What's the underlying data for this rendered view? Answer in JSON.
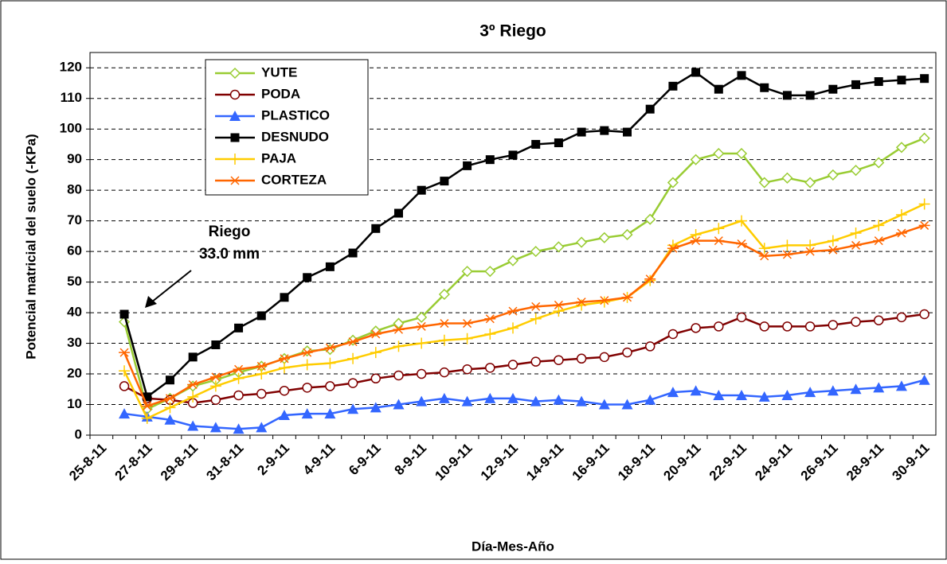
{
  "chart_data": {
    "type": "line",
    "title": "3º Riego",
    "x_label": "Día-Mes-Año",
    "y_label": "Potencial matricial del suelo (-KPa)",
    "annotation": [
      "Riego",
      "33.0 mm"
    ],
    "categories": [
      "25-8-11",
      null,
      "27-8-11",
      null,
      "29-8-11",
      null,
      "31-8-11",
      null,
      "2-9-11",
      null,
      "4-9-11",
      null,
      "6-9-11",
      null,
      "8-9-11",
      null,
      "10-9-11",
      null,
      "12-9-11",
      null,
      "14-9-11",
      null,
      "16-9-11",
      null,
      "18-9-11",
      null,
      "20-9-11",
      null,
      "22-9-11",
      null,
      "24-9-11",
      null,
      "26-9-11",
      null,
      "28-9-11",
      null,
      "30-9-11"
    ],
    "ylim": [
      0,
      125
    ],
    "yticks": [
      0,
      10,
      20,
      30,
      40,
      50,
      60,
      70,
      80,
      90,
      100,
      110,
      120
    ],
    "grid": true,
    "legend": "upper-left",
    "series": [
      {
        "name": "YUTE",
        "color": "#99cc33",
        "marker": "diamond",
        "values": [
          null,
          37,
          8.5,
          12,
          16,
          18,
          20.5,
          22.5,
          25,
          27.5,
          28,
          31,
          34,
          36.5,
          38.5,
          46,
          53.5,
          53.5,
          57,
          60,
          61.5,
          63,
          64.5,
          65.5,
          70.5,
          82.5,
          90,
          92,
          92,
          82.5,
          84,
          82.5,
          85,
          86.5,
          89,
          94,
          97
        ]
      },
      {
        "name": "PODA",
        "color": "#800000",
        "marker": "circle",
        "values": [
          null,
          16,
          12,
          11.5,
          10.5,
          11.5,
          13,
          13.5,
          14.5,
          15.5,
          16,
          17,
          18.5,
          19.5,
          20,
          20.5,
          21.5,
          22,
          23,
          24,
          24.5,
          25,
          25.5,
          27,
          29,
          33,
          35,
          35.5,
          38.5,
          35.5,
          35.5,
          35.5,
          36,
          37,
          37.5,
          38.5,
          39.5
        ]
      },
      {
        "name": "PLASTICO",
        "color": "#3366ff",
        "marker": "triangle",
        "values": [
          null,
          7,
          6,
          5,
          3,
          2.5,
          2,
          2.5,
          6.5,
          7,
          7,
          8.5,
          9,
          10,
          11,
          12,
          11,
          12,
          12,
          11,
          11.5,
          11,
          10,
          10,
          11.5,
          14,
          14.5,
          13,
          13,
          12.5,
          13,
          14,
          14.5,
          15,
          15.5,
          16,
          18
        ]
      },
      {
        "name": "DESNUDO",
        "color": "#000000",
        "marker": "square",
        "values": [
          null,
          39.5,
          12.5,
          18,
          25.5,
          29.5,
          35,
          39,
          45,
          51.5,
          55,
          59.5,
          67.5,
          72.5,
          80,
          83,
          88,
          90,
          91.5,
          95,
          95.5,
          99,
          99.5,
          99,
          106.5,
          114,
          118.5,
          113,
          117.5,
          113.5,
          111,
          111,
          113,
          114.5,
          115.5,
          116,
          116.5
        ]
      },
      {
        "name": "PAJA",
        "color": "#ffcc00",
        "marker": "plus",
        "values": [
          null,
          21,
          5.5,
          9,
          12.5,
          16,
          18.5,
          20,
          22,
          23,
          23.5,
          25,
          27,
          29,
          30,
          31,
          31.5,
          33,
          35,
          38,
          40.5,
          42.5,
          43.5,
          45,
          50.5,
          62,
          65.5,
          67.5,
          70,
          61,
          62,
          62,
          63.5,
          66,
          68.5,
          72,
          75.5
        ]
      },
      {
        "name": "CORTEZA",
        "color": "#ff6600",
        "marker": "star",
        "values": [
          null,
          27,
          9.5,
          12,
          16.5,
          19,
          21.5,
          22.5,
          25,
          27,
          28.5,
          30.5,
          33,
          34.5,
          35.5,
          36.5,
          36.5,
          38,
          40.5,
          42,
          42.5,
          43.5,
          44,
          45,
          51,
          61,
          63.5,
          63.5,
          62.5,
          58.5,
          59,
          60,
          60.5,
          62,
          63.5,
          66,
          68.5
        ]
      }
    ]
  }
}
